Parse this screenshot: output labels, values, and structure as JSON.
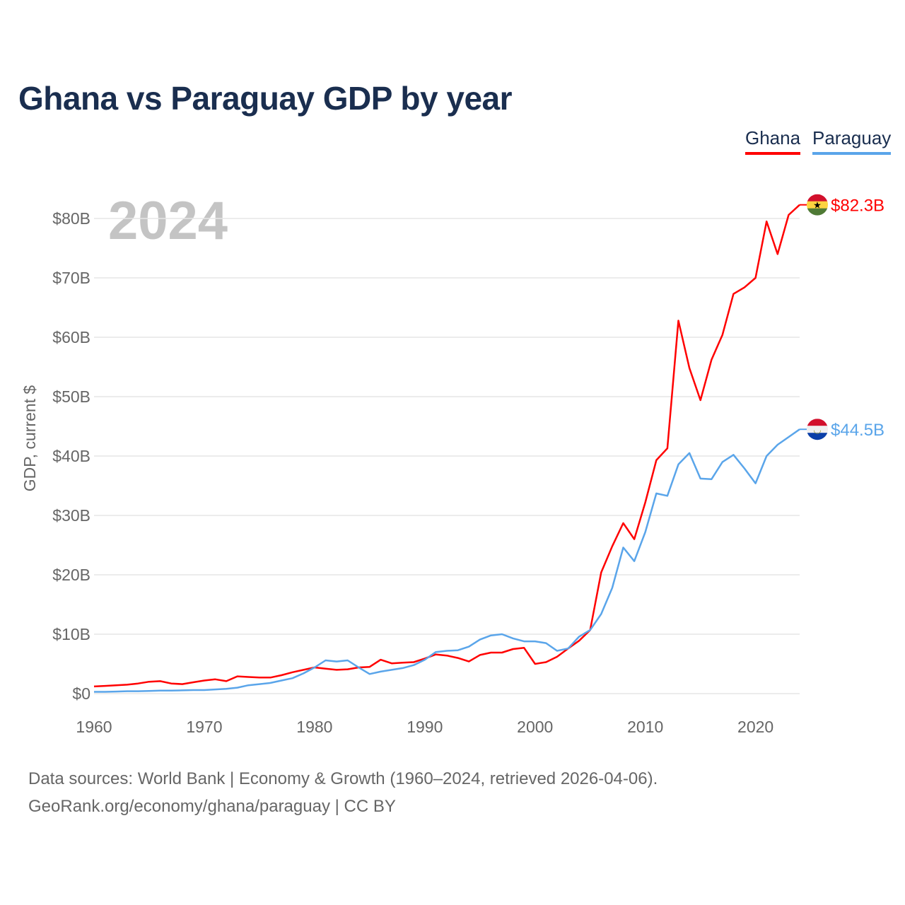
{
  "chart_data": {
    "type": "line",
    "title": "Ghana vs Paraguay GDP by year",
    "ylabel": "GDP, current $",
    "xlabel": "",
    "year_watermark": "2024",
    "ylim": [
      0,
      80
    ],
    "xlim": [
      1960,
      2024
    ],
    "y_ticks": [
      0,
      10,
      20,
      30,
      40,
      50,
      60,
      70,
      80
    ],
    "y_tick_labels": [
      "$0",
      "$10B",
      "$20B",
      "$30B",
      "$40B",
      "$50B",
      "$60B",
      "$70B",
      "$80B"
    ],
    "x_ticks": [
      1960,
      1970,
      1980,
      1990,
      2000,
      2010,
      2020
    ],
    "x_tick_labels": [
      "1960",
      "1970",
      "1980",
      "1990",
      "2000",
      "2010",
      "2020"
    ],
    "grid": true,
    "legend_position": "top-right",
    "x_start": 1960,
    "series": [
      {
        "name": "Ghana",
        "color": "#ff0000",
        "end_label": "$82.3B",
        "flag": "ghana-flag",
        "values": [
          1.2,
          1.3,
          1.4,
          1.5,
          1.7,
          2.0,
          2.1,
          1.7,
          1.6,
          1.9,
          2.2,
          2.4,
          2.1,
          2.9,
          2.8,
          2.7,
          2.7,
          3.1,
          3.6,
          4.0,
          4.4,
          4.2,
          4.0,
          4.1,
          4.4,
          4.5,
          5.7,
          5.1,
          5.2,
          5.3,
          5.9,
          6.6,
          6.4,
          6.0,
          5.4,
          6.5,
          6.9,
          6.9,
          7.5,
          7.7,
          5.0,
          5.3,
          6.2,
          7.6,
          8.9,
          10.7,
          20.4,
          24.8,
          28.7,
          26.0,
          32.2,
          39.3,
          41.3,
          62.8,
          54.8,
          49.4,
          56.2,
          60.4,
          67.3,
          68.4,
          70.0,
          79.5,
          74.0,
          80.6,
          82.3
        ]
      },
      {
        "name": "Paraguay",
        "color": "#5aa5ea",
        "end_label": "$44.5B",
        "flag": "paraguay-flag",
        "values": [
          0.3,
          0.3,
          0.35,
          0.4,
          0.4,
          0.45,
          0.5,
          0.5,
          0.55,
          0.6,
          0.6,
          0.7,
          0.8,
          1.0,
          1.4,
          1.6,
          1.8,
          2.2,
          2.6,
          3.4,
          4.4,
          5.6,
          5.4,
          5.6,
          4.4,
          3.3,
          3.7,
          4.0,
          4.3,
          4.8,
          5.7,
          7.0,
          7.2,
          7.3,
          7.9,
          9.1,
          9.8,
          10.0,
          9.3,
          8.8,
          8.8,
          8.5,
          7.2,
          7.6,
          9.6,
          10.7,
          13.4,
          17.8,
          24.6,
          22.3,
          27.2,
          33.7,
          33.3,
          38.6,
          40.5,
          36.2,
          36.1,
          39.0,
          40.2,
          37.9,
          35.4,
          40.0,
          41.9,
          43.2,
          44.5
        ]
      }
    ]
  },
  "footer": {
    "line1": "Data sources: World Bank | Economy & Growth (1960–2024, retrieved 2026-04-06).",
    "line2": "GeoRank.org/economy/ghana/paraguay | CC BY"
  }
}
